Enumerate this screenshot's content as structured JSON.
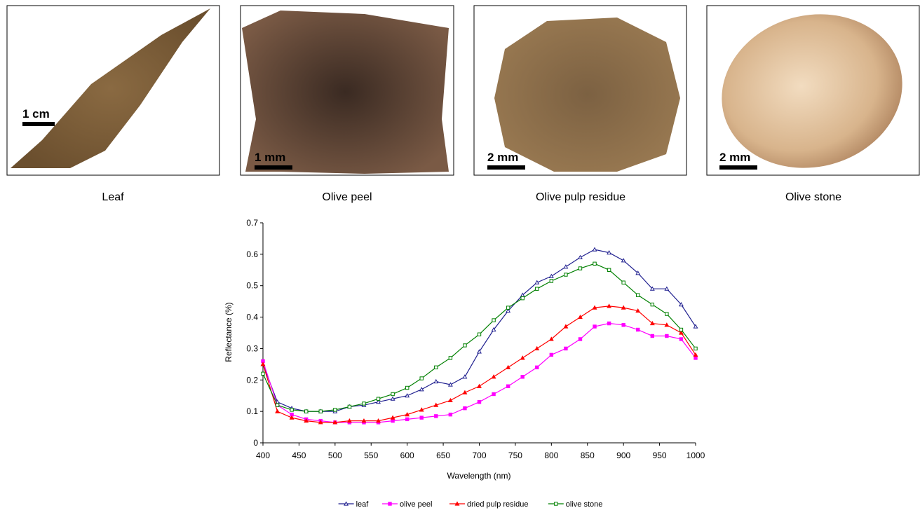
{
  "panels": [
    {
      "caption": "Leaf",
      "scale": "1 cm"
    },
    {
      "caption": "Olive peel",
      "scale": "1 mm"
    },
    {
      "caption": "Olive pulp residue",
      "scale": "2 mm"
    },
    {
      "caption": "Olive stone",
      "scale": "2 mm"
    }
  ],
  "chart_data": {
    "type": "line",
    "x_label": "Wavelength (nm)",
    "y_label": "Reflectance (%)",
    "x": [
      400,
      420,
      440,
      460,
      480,
      500,
      520,
      540,
      560,
      580,
      600,
      620,
      640,
      660,
      680,
      700,
      720,
      740,
      760,
      780,
      800,
      820,
      840,
      860,
      880,
      900,
      920,
      940,
      960,
      980,
      1000
    ],
    "xlim": [
      400,
      1000
    ],
    "xticks": [
      400,
      450,
      500,
      550,
      600,
      650,
      700,
      750,
      800,
      850,
      900,
      950,
      1000
    ],
    "ylim": [
      0,
      0.7
    ],
    "yticks": [
      0,
      0.1,
      0.2,
      0.3,
      0.4,
      0.5,
      0.6,
      0.7
    ],
    "legend": "bottom",
    "series": [
      {
        "name": "leaf",
        "color": "#1f1f8f",
        "marker": "open-triangle",
        "values": [
          0.25,
          0.13,
          0.11,
          0.1,
          0.1,
          0.1,
          0.115,
          0.12,
          0.13,
          0.14,
          0.15,
          0.17,
          0.195,
          0.185,
          0.21,
          0.29,
          0.36,
          0.42,
          0.47,
          0.51,
          0.53,
          0.56,
          0.59,
          0.615,
          0.605,
          0.58,
          0.54,
          0.49,
          0.49,
          0.44,
          0.37
        ]
      },
      {
        "name": "olive peel",
        "color": "#ff00ff",
        "marker": "filled-square",
        "values": [
          0.26,
          0.12,
          0.09,
          0.075,
          0.07,
          0.065,
          0.065,
          0.065,
          0.065,
          0.07,
          0.075,
          0.08,
          0.085,
          0.09,
          0.11,
          0.13,
          0.155,
          0.18,
          0.21,
          0.24,
          0.28,
          0.3,
          0.33,
          0.37,
          0.38,
          0.375,
          0.36,
          0.34,
          0.34,
          0.33,
          0.27
        ]
      },
      {
        "name": "dried pulp residue",
        "color": "#ff0000",
        "marker": "filled-triangle",
        "values": [
          0.25,
          0.1,
          0.08,
          0.07,
          0.065,
          0.065,
          0.07,
          0.07,
          0.07,
          0.08,
          0.09,
          0.105,
          0.12,
          0.135,
          0.16,
          0.18,
          0.21,
          0.24,
          0.27,
          0.3,
          0.33,
          0.37,
          0.4,
          0.43,
          0.435,
          0.43,
          0.42,
          0.38,
          0.375,
          0.35,
          0.28
        ]
      },
      {
        "name": "olive stone",
        "color": "#008000",
        "marker": "open-square",
        "values": [
          0.22,
          0.12,
          0.105,
          0.1,
          0.1,
          0.105,
          0.115,
          0.125,
          0.14,
          0.155,
          0.175,
          0.205,
          0.24,
          0.27,
          0.31,
          0.345,
          0.39,
          0.43,
          0.46,
          0.49,
          0.515,
          0.535,
          0.555,
          0.57,
          0.55,
          0.51,
          0.47,
          0.44,
          0.41,
          0.36,
          0.3
        ]
      }
    ]
  }
}
